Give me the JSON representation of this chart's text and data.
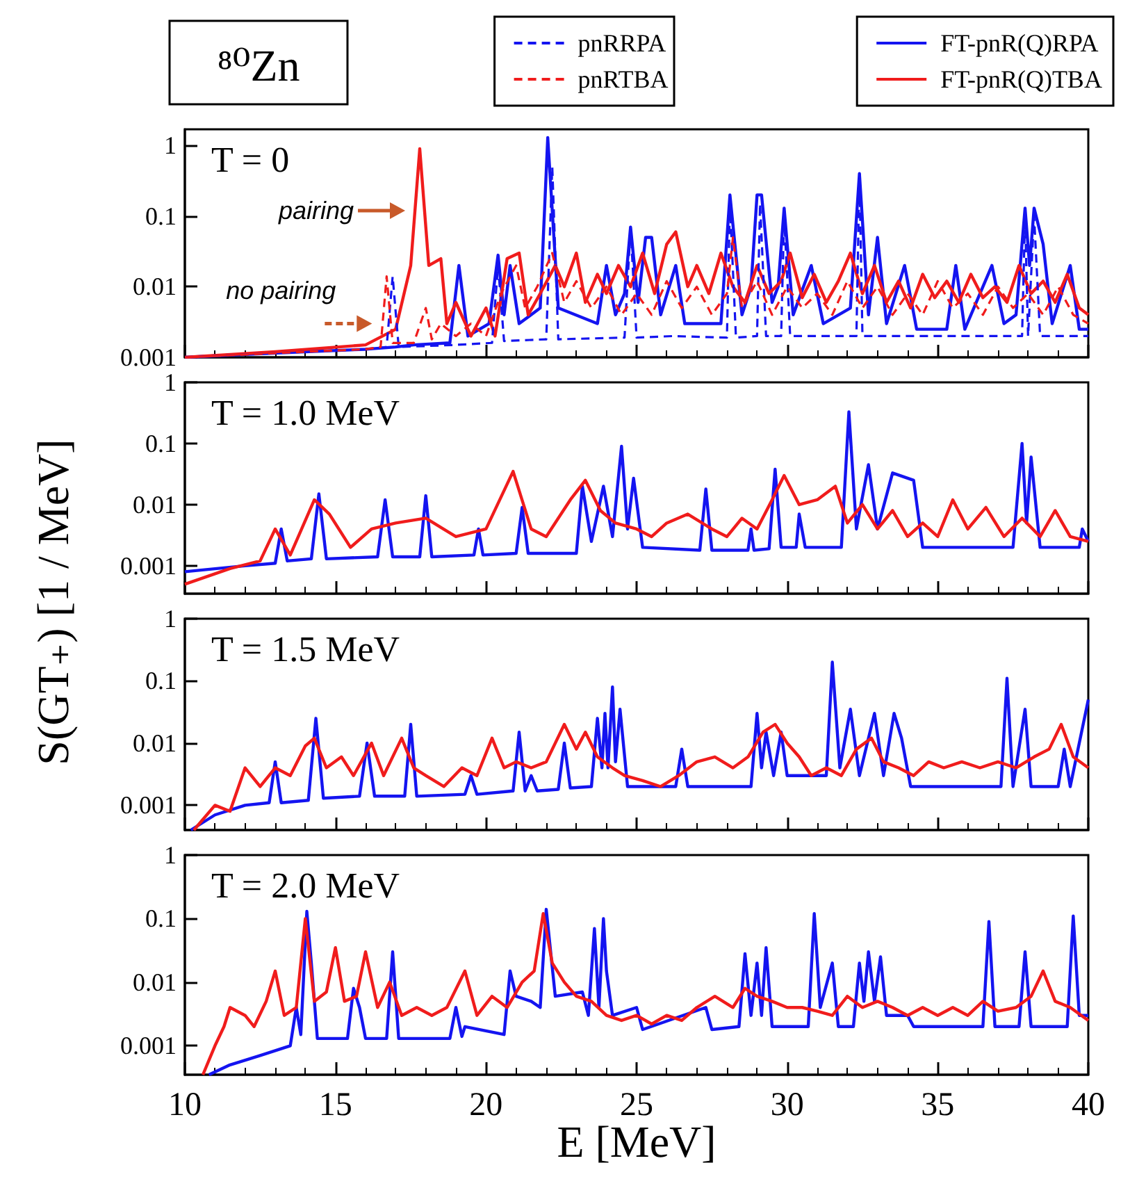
{
  "chart_data": [
    {
      "type": "line",
      "title": "T = 0",
      "ylabel": "S(GT₊) [1 / MeV]",
      "annotations": [
        "⁸⁰Zn",
        {
          "text": "pairing",
          "x": 17.5,
          "y": 0.12
        },
        {
          "text": "no pairing",
          "x": 16.4,
          "y": 0.003
        }
      ],
      "legend": "top",
      "log": "y",
      "tick_labels": "y",
      "xlim": [
        10,
        40
      ],
      "xticks": [
        10,
        15,
        20,
        25,
        30,
        35,
        40
      ],
      "ylim": [
        0.001,
        1.7
      ],
      "yticks": [
        0.001,
        0.01,
        0.1,
        1
      ],
      "series": [
        {
          "name": "pnRRPA",
          "color": "#1414f0",
          "line_style": "dashed",
          "x": [
            10,
            14,
            16,
            16.7,
            16.9,
            17.1,
            19.0,
            20.2,
            20.4,
            20.6,
            22.0,
            22.2,
            22.4,
            24.6,
            24.8,
            25.0,
            26.2,
            28.0,
            28.1,
            28.3,
            29.0,
            29.1,
            29.3,
            29.8,
            29.9,
            30.1,
            32.3,
            32.4,
            32.5,
            33.0,
            35.5,
            37.8,
            37.9,
            38.0,
            38.2,
            38.4,
            40
          ],
          "values": [
            0.001,
            0.0012,
            0.0013,
            0.0014,
            0.014,
            0.0014,
            0.0015,
            0.0016,
            0.02,
            0.0017,
            0.0018,
            0.5,
            0.0018,
            0.0019,
            0.07,
            0.0019,
            0.002,
            0.0019,
            0.15,
            0.0019,
            0.002,
            0.15,
            0.002,
            0.002,
            0.1,
            0.002,
            0.002,
            0.4,
            0.002,
            0.002,
            0.002,
            0.002,
            0.1,
            0.002,
            0.1,
            0.002,
            0.002
          ]
        },
        {
          "name": "pnRTBA",
          "color": "#f01c1c",
          "line_style": "dashed",
          "x": [
            10,
            14,
            16,
            16.5,
            16.7,
            16.9,
            17.6,
            18.0,
            18.2,
            18.5,
            19.0,
            19.5,
            20.0,
            20.5,
            21.0,
            21.3,
            21.7,
            22.2,
            22.6,
            23.0,
            23.5,
            24.0,
            24.5,
            25.0,
            25.5,
            26.0,
            26.5,
            27.0,
            27.5,
            28.0,
            28.2,
            28.5,
            29.0,
            29.5,
            30.0,
            30.5,
            31.0,
            31.5,
            32.0,
            32.5,
            33.0,
            33.5,
            34.0,
            34.5,
            35.0,
            35.5,
            36.0,
            36.5,
            37.0,
            37.5,
            38.0,
            38.5,
            39.0,
            39.5,
            40
          ],
          "values": [
            0.001,
            0.0012,
            0.0013,
            0.0014,
            0.014,
            0.0016,
            0.0016,
            0.005,
            0.0018,
            0.003,
            0.002,
            0.003,
            0.002,
            0.008,
            0.02,
            0.005,
            0.01,
            0.03,
            0.006,
            0.012,
            0.005,
            0.01,
            0.004,
            0.008,
            0.004,
            0.012,
            0.005,
            0.01,
            0.004,
            0.008,
            0.05,
            0.005,
            0.012,
            0.004,
            0.01,
            0.005,
            0.008,
            0.004,
            0.012,
            0.005,
            0.01,
            0.004,
            0.008,
            0.004,
            0.012,
            0.005,
            0.008,
            0.004,
            0.01,
            0.005,
            0.008,
            0.004,
            0.01,
            0.004,
            0.003
          ]
        },
        {
          "name": "FT-pnR(Q)RPA",
          "color": "#1414f0",
          "line_style": "solid",
          "x": [
            10,
            12,
            14,
            16,
            17,
            17.6,
            18.8,
            19.1,
            19.4,
            20.1,
            20.4,
            20.6,
            20.8,
            21.1,
            21.8,
            22.05,
            22.4,
            23.7,
            24.0,
            24.3,
            24.6,
            24.8,
            25.05,
            25.3,
            25.5,
            25.8,
            26.3,
            26.6,
            27.8,
            28.1,
            28.5,
            28.8,
            29.0,
            29.15,
            29.5,
            29.7,
            29.9,
            30.2,
            30.8,
            31.2,
            32.1,
            32.4,
            32.7,
            33.0,
            33.3,
            33.9,
            34.3,
            35.3,
            35.6,
            35.9,
            36.8,
            37.2,
            37.6,
            37.9,
            38.05,
            38.2,
            38.5,
            38.8,
            39.4,
            39.7,
            40
          ],
          "values": [
            0.001,
            0.0011,
            0.0012,
            0.0013,
            0.0014,
            0.0015,
            0.0016,
            0.02,
            0.002,
            0.003,
            0.028,
            0.004,
            0.02,
            0.003,
            0.005,
            1.3,
            0.005,
            0.003,
            0.02,
            0.004,
            0.008,
            0.07,
            0.006,
            0.05,
            0.05,
            0.004,
            0.02,
            0.003,
            0.003,
            0.2,
            0.004,
            0.01,
            0.2,
            0.2,
            0.006,
            0.01,
            0.13,
            0.004,
            0.02,
            0.003,
            0.005,
            0.4,
            0.004,
            0.05,
            0.003,
            0.02,
            0.0025,
            0.0025,
            0.02,
            0.0025,
            0.02,
            0.003,
            0.004,
            0.13,
            0.02,
            0.13,
            0.04,
            0.003,
            0.02,
            0.0025,
            0.0025
          ]
        },
        {
          "name": "FT-pnR(Q)TBA",
          "color": "#f01c1c",
          "line_style": "solid",
          "x": [
            10,
            13,
            16,
            17,
            17.5,
            17.8,
            18.1,
            18.5,
            18.7,
            19.0,
            19.5,
            20.0,
            20.3,
            20.7,
            21.1,
            21.4,
            21.8,
            22.3,
            22.6,
            23.0,
            23.3,
            23.7,
            24.0,
            24.4,
            24.8,
            25.2,
            25.6,
            26.0,
            26.3,
            26.7,
            27.0,
            27.4,
            27.8,
            28.2,
            28.6,
            29.0,
            29.4,
            29.8,
            30.1,
            30.5,
            30.9,
            31.3,
            31.7,
            32.1,
            32.5,
            32.9,
            33.3,
            33.7,
            34.1,
            34.5,
            34.9,
            35.3,
            35.7,
            36.1,
            36.5,
            36.9,
            37.3,
            37.7,
            38.1,
            38.5,
            38.9,
            39.3,
            39.7,
            40
          ],
          "values": [
            0.001,
            0.0012,
            0.0015,
            0.0025,
            0.02,
            0.9,
            0.02,
            0.025,
            0.003,
            0.006,
            0.002,
            0.005,
            0.002,
            0.025,
            0.03,
            0.004,
            0.008,
            0.02,
            0.01,
            0.03,
            0.006,
            0.015,
            0.008,
            0.02,
            0.01,
            0.03,
            0.008,
            0.04,
            0.06,
            0.01,
            0.02,
            0.008,
            0.03,
            0.01,
            0.006,
            0.02,
            0.008,
            0.012,
            0.03,
            0.007,
            0.015,
            0.006,
            0.012,
            0.03,
            0.008,
            0.02,
            0.006,
            0.012,
            0.005,
            0.015,
            0.007,
            0.012,
            0.006,
            0.015,
            0.007,
            0.01,
            0.006,
            0.02,
            0.008,
            0.012,
            0.006,
            0.015,
            0.005,
            0.004
          ]
        }
      ]
    },
    {
      "type": "line",
      "title": "T = 1.0 MeV",
      "log": "y",
      "tick_labels": "y",
      "xlim": [
        10,
        40
      ],
      "xticks": [
        10,
        15,
        20,
        25,
        30,
        35,
        40
      ],
      "ylim": [
        0.00035,
        1
      ],
      "yticks": [
        0.001,
        0.01,
        0.1,
        1
      ],
      "series": [
        {
          "color": "#1414f0",
          "line_style": "solid",
          "x": [
            10,
            12,
            13.0,
            13.2,
            13.4,
            14.2,
            14.45,
            14.7,
            16.4,
            16.65,
            16.9,
            17.8,
            18.0,
            18.2,
            19.6,
            19.75,
            19.9,
            21.0,
            21.2,
            21.4,
            23.0,
            23.2,
            23.5,
            23.9,
            24.2,
            24.5,
            24.7,
            24.9,
            25.2,
            27.1,
            27.3,
            27.5,
            28.7,
            28.8,
            28.9,
            29.4,
            29.6,
            29.8,
            30.3,
            30.4,
            30.6,
            31.8,
            32.05,
            32.3,
            32.7,
            33.0,
            33.5,
            34.2,
            34.5,
            37.5,
            37.8,
            37.95,
            38.1,
            38.4,
            39.7,
            39.8,
            40
          ],
          "values": [
            0.0008,
            0.001,
            0.0011,
            0.004,
            0.0012,
            0.0013,
            0.015,
            0.0013,
            0.0014,
            0.012,
            0.0014,
            0.0014,
            0.014,
            0.0014,
            0.0015,
            0.004,
            0.0015,
            0.0016,
            0.009,
            0.0016,
            0.0016,
            0.02,
            0.0025,
            0.02,
            0.003,
            0.09,
            0.004,
            0.027,
            0.002,
            0.0018,
            0.018,
            0.0018,
            0.0018,
            0.004,
            0.0018,
            0.0019,
            0.038,
            0.002,
            0.002,
            0.007,
            0.002,
            0.002,
            0.33,
            0.004,
            0.045,
            0.004,
            0.033,
            0.025,
            0.002,
            0.002,
            0.1,
            0.005,
            0.06,
            0.002,
            0.002,
            0.004,
            0.0025
          ]
        },
        {
          "color": "#f01c1c",
          "line_style": "solid",
          "x": [
            10,
            11.5,
            12.5,
            13.0,
            13.5,
            14.3,
            14.8,
            15.5,
            16.2,
            17.0,
            18,
            19,
            20,
            20.9,
            21.5,
            22,
            22.8,
            23.3,
            23.8,
            24.3,
            25,
            25.5,
            26,
            26.7,
            27.5,
            28,
            28.5,
            29,
            29.5,
            29.9,
            30.4,
            31,
            31.6,
            32,
            32.5,
            33,
            33.5,
            34,
            34.5,
            35,
            35.5,
            36,
            36.6,
            37.2,
            37.8,
            38.4,
            38.9,
            39.4,
            40
          ],
          "values": [
            0.0005,
            0.0009,
            0.0012,
            0.004,
            0.0015,
            0.012,
            0.007,
            0.002,
            0.004,
            0.005,
            0.006,
            0.003,
            0.004,
            0.035,
            0.004,
            0.003,
            0.012,
            0.025,
            0.008,
            0.005,
            0.004,
            0.003,
            0.005,
            0.007,
            0.004,
            0.003,
            0.006,
            0.004,
            0.012,
            0.03,
            0.01,
            0.012,
            0.02,
            0.005,
            0.01,
            0.004,
            0.008,
            0.003,
            0.005,
            0.003,
            0.012,
            0.004,
            0.009,
            0.003,
            0.006,
            0.003,
            0.008,
            0.003,
            0.0025
          ]
        }
      ]
    },
    {
      "type": "line",
      "title": "T = 1.5 MeV",
      "log": "y",
      "tick_labels": "y",
      "xlim": [
        10,
        40
      ],
      "xticks": [
        10,
        15,
        20,
        25,
        30,
        35,
        40
      ],
      "ylim": [
        0.0004,
        1
      ],
      "yticks": [
        0.001,
        0.01,
        0.1,
        1
      ],
      "series": [
        {
          "color": "#1414f0",
          "line_style": "solid",
          "x": [
            10.2,
            11,
            12,
            12.8,
            13.0,
            13.2,
            14.1,
            14.35,
            14.6,
            15.8,
            16.05,
            16.3,
            17.3,
            17.5,
            17.7,
            19.3,
            19.5,
            19.7,
            20.9,
            21.1,
            21.3,
            21.5,
            21.7,
            22.4,
            22.6,
            22.8,
            23.5,
            23.7,
            23.85,
            23.95,
            24.05,
            24.2,
            24.3,
            24.45,
            24.7,
            26.3,
            26.5,
            26.7,
            28.8,
            29.0,
            29.15,
            29.3,
            29.55,
            29.8,
            30.0,
            31.3,
            31.5,
            31.75,
            32.1,
            32.4,
            32.9,
            33.2,
            33.55,
            33.8,
            34.1,
            37.1,
            37.3,
            37.5,
            37.9,
            38.1,
            39.0,
            39.2,
            39.4,
            40
          ],
          "values": [
            0.0004,
            0.0007,
            0.001,
            0.0011,
            0.005,
            0.0011,
            0.0012,
            0.025,
            0.0013,
            0.0014,
            0.01,
            0.0014,
            0.0014,
            0.02,
            0.0014,
            0.0015,
            0.003,
            0.0015,
            0.0017,
            0.015,
            0.0017,
            0.003,
            0.0017,
            0.0018,
            0.01,
            0.0019,
            0.002,
            0.025,
            0.004,
            0.03,
            0.004,
            0.08,
            0.005,
            0.035,
            0.002,
            0.002,
            0.008,
            0.002,
            0.002,
            0.03,
            0.004,
            0.015,
            0.003,
            0.015,
            0.003,
            0.003,
            0.2,
            0.004,
            0.035,
            0.003,
            0.03,
            0.003,
            0.03,
            0.012,
            0.002,
            0.002,
            0.11,
            0.002,
            0.035,
            0.002,
            0.002,
            0.008,
            0.002,
            0.05
          ]
        },
        {
          "color": "#f01c1c",
          "line_style": "solid",
          "x": [
            10.3,
            11,
            11.5,
            12,
            12.5,
            13,
            13.5,
            14,
            14.3,
            14.7,
            15.2,
            15.6,
            16.2,
            16.6,
            17.2,
            17.6,
            18,
            18.6,
            19.2,
            19.7,
            20.2,
            20.6,
            21,
            21.5,
            22,
            22.6,
            23,
            23.3,
            23.7,
            24.2,
            24.6,
            25.2,
            25.8,
            26.4,
            27,
            27.6,
            28.2,
            28.7,
            29.2,
            29.6,
            30,
            30.4,
            30.8,
            31.3,
            31.8,
            32.3,
            32.8,
            33.2,
            33.7,
            34.2,
            34.7,
            35.2,
            35.8,
            36.4,
            37,
            37.6,
            38.2,
            38.7,
            39.1,
            39.5,
            40
          ],
          "values": [
            0.0004,
            0.001,
            0.0008,
            0.004,
            0.002,
            0.004,
            0.003,
            0.009,
            0.012,
            0.004,
            0.006,
            0.003,
            0.01,
            0.003,
            0.012,
            0.004,
            0.003,
            0.002,
            0.004,
            0.003,
            0.012,
            0.004,
            0.005,
            0.004,
            0.005,
            0.02,
            0.008,
            0.015,
            0.006,
            0.004,
            0.003,
            0.0025,
            0.002,
            0.003,
            0.005,
            0.006,
            0.004,
            0.006,
            0.015,
            0.02,
            0.01,
            0.006,
            0.003,
            0.004,
            0.003,
            0.008,
            0.012,
            0.005,
            0.004,
            0.003,
            0.005,
            0.004,
            0.005,
            0.004,
            0.005,
            0.004,
            0.006,
            0.008,
            0.02,
            0.006,
            0.004
          ]
        }
      ]
    },
    {
      "type": "line",
      "title": "T = 2.0 MeV",
      "xlabel": "E [MeV]",
      "log": "y",
      "xlim": [
        10,
        40
      ],
      "xticks": [
        10,
        15,
        20,
        25,
        30,
        35,
        40
      ],
      "ylim": [
        0.00035,
        1
      ],
      "yticks": [
        0.001,
        0.01,
        0.1,
        1
      ],
      "series": [
        {
          "color": "#1414f0",
          "line_style": "solid",
          "x": [
            10.8,
            11.5,
            12.5,
            13.5,
            13.7,
            13.85,
            14.05,
            14.2,
            14.4,
            15.4,
            15.6,
            15.8,
            16.0,
            16.7,
            16.9,
            17.1,
            18.8,
            19.0,
            19.2,
            19.3,
            20.6,
            20.8,
            21.0,
            21.5,
            21.8,
            22.0,
            22.3,
            23.2,
            23.4,
            23.6,
            23.75,
            23.9,
            24.0,
            24.2,
            25.0,
            25.2,
            27.3,
            27.5,
            28.4,
            28.6,
            28.8,
            29.0,
            29.15,
            29.3,
            29.5,
            30.7,
            30.9,
            31.1,
            31.5,
            31.7,
            32.2,
            32.4,
            32.55,
            32.7,
            32.9,
            33.1,
            33.3,
            34.0,
            34.2,
            36.5,
            36.7,
            36.9,
            37.7,
            37.9,
            38.1,
            39.3,
            39.5,
            39.7,
            40
          ],
          "values": [
            0.00035,
            0.0005,
            0.0007,
            0.001,
            0.004,
            0.0015,
            0.13,
            0.02,
            0.0013,
            0.0013,
            0.008,
            0.004,
            0.0013,
            0.0013,
            0.03,
            0.0013,
            0.0013,
            0.004,
            0.0014,
            0.002,
            0.0015,
            0.015,
            0.006,
            0.005,
            0.004,
            0.14,
            0.006,
            0.007,
            0.003,
            0.07,
            0.004,
            0.1,
            0.015,
            0.003,
            0.004,
            0.0018,
            0.004,
            0.0018,
            0.002,
            0.028,
            0.003,
            0.02,
            0.003,
            0.035,
            0.002,
            0.002,
            0.12,
            0.004,
            0.02,
            0.002,
            0.002,
            0.02,
            0.005,
            0.03,
            0.005,
            0.025,
            0.003,
            0.003,
            0.002,
            0.002,
            0.09,
            0.002,
            0.002,
            0.03,
            0.002,
            0.002,
            0.11,
            0.003,
            0.003
          ]
        },
        {
          "color": "#f01c1c",
          "line_style": "solid",
          "x": [
            10.6,
            11,
            11.3,
            11.5,
            12,
            12.3,
            12.7,
            13,
            13.3,
            13.7,
            14,
            14.3,
            14.7,
            15,
            15.3,
            15.7,
            16,
            16.4,
            16.8,
            17.2,
            17.7,
            18.2,
            18.7,
            19.3,
            19.7,
            20.2,
            20.7,
            21.2,
            21.6,
            21.9,
            22.2,
            22.6,
            23,
            23.5,
            24,
            24.5,
            25,
            25.5,
            26,
            26.5,
            27,
            27.6,
            28.2,
            28.6,
            29,
            29.5,
            30,
            30.5,
            31,
            31.5,
            32,
            32.5,
            33,
            33.5,
            34,
            34.5,
            35,
            35.5,
            36,
            36.5,
            37,
            37.6,
            38.1,
            38.5,
            38.9,
            39.4,
            40
          ],
          "values": [
            0.00035,
            0.001,
            0.002,
            0.004,
            0.003,
            0.002,
            0.005,
            0.015,
            0.003,
            0.004,
            0.1,
            0.005,
            0.007,
            0.035,
            0.005,
            0.006,
            0.03,
            0.004,
            0.01,
            0.003,
            0.004,
            0.003,
            0.004,
            0.015,
            0.003,
            0.006,
            0.004,
            0.01,
            0.015,
            0.12,
            0.02,
            0.01,
            0.006,
            0.005,
            0.003,
            0.0025,
            0.003,
            0.0022,
            0.003,
            0.0025,
            0.004,
            0.006,
            0.004,
            0.008,
            0.006,
            0.005,
            0.004,
            0.004,
            0.0035,
            0.003,
            0.006,
            0.004,
            0.005,
            0.004,
            0.003,
            0.004,
            0.003,
            0.004,
            0.003,
            0.005,
            0.0035,
            0.004,
            0.006,
            0.015,
            0.005,
            0.004,
            0.0025
          ]
        }
      ]
    }
  ]
}
